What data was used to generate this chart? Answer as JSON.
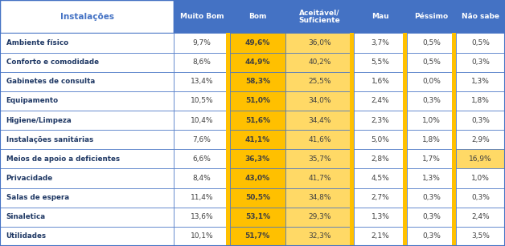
{
  "title": "Instalações",
  "columns": [
    "Muito Bom",
    "Bom",
    "Aceitável/\nSuficiente",
    "Mau",
    "Péssimo",
    "Não sabe"
  ],
  "rows": [
    "Ambiente físico",
    "Conforto e comodidade",
    "Gabinetes de consulta",
    "Equipamento",
    "Higiene/Limpeza",
    "Instalações sanitárias",
    "Meios de apoio a deficientes",
    "Privacidade",
    "Salas de espera",
    "Sinaletica",
    "Utilidades"
  ],
  "data": [
    [
      9.7,
      49.6,
      36.0,
      3.7,
      0.5,
      0.5
    ],
    [
      8.6,
      44.9,
      40.2,
      5.5,
      0.5,
      0.3
    ],
    [
      13.4,
      58.3,
      25.5,
      1.6,
      0.0,
      1.3
    ],
    [
      10.5,
      51.0,
      34.0,
      2.4,
      0.3,
      1.8
    ],
    [
      10.4,
      51.6,
      34.4,
      2.3,
      1.0,
      0.3
    ],
    [
      7.6,
      41.1,
      41.6,
      5.0,
      1.8,
      2.9
    ],
    [
      6.6,
      36.3,
      35.7,
      2.8,
      1.7,
      16.9
    ],
    [
      8.4,
      43.0,
      41.7,
      4.5,
      1.3,
      1.0
    ],
    [
      11.4,
      50.5,
      34.8,
      2.7,
      0.3,
      0.3
    ],
    [
      13.6,
      53.1,
      29.3,
      1.3,
      0.3,
      2.4
    ],
    [
      10.1,
      51.7,
      32.3,
      2.1,
      0.3,
      3.5
    ]
  ],
  "text_data": [
    [
      "9,7%",
      "49,6%",
      "36,0%",
      "3,7%",
      "0,5%",
      "0,5%"
    ],
    [
      "8,6%",
      "44,9%",
      "40,2%",
      "5,5%",
      "0,5%",
      "0,3%"
    ],
    [
      "13,4%",
      "58,3%",
      "25,5%",
      "1,6%",
      "0,0%",
      "1,3%"
    ],
    [
      "10,5%",
      "51,0%",
      "34,0%",
      "2,4%",
      "0,3%",
      "1,8%"
    ],
    [
      "10,4%",
      "51,6%",
      "34,4%",
      "2,3%",
      "1,0%",
      "0,3%"
    ],
    [
      "7,6%",
      "41,1%",
      "41,6%",
      "5,0%",
      "1,8%",
      "2,9%"
    ],
    [
      "6,6%",
      "36,3%",
      "35,7%",
      "2,8%",
      "1,7%",
      "16,9%"
    ],
    [
      "8,4%",
      "43,0%",
      "41,7%",
      "4,5%",
      "1,3%",
      "1,0%"
    ],
    [
      "11,4%",
      "50,5%",
      "34,8%",
      "2,7%",
      "0,3%",
      "0,3%"
    ],
    [
      "13,6%",
      "53,1%",
      "29,3%",
      "1,3%",
      "0,3%",
      "2,4%"
    ],
    [
      "10,1%",
      "51,7%",
      "32,3%",
      "2,1%",
      "0,3%",
      "3,5%"
    ]
  ],
  "col_bold_per_row": [
    [
      false,
      true,
      false,
      false,
      false,
      false
    ],
    [
      false,
      true,
      false,
      false,
      false,
      false
    ],
    [
      false,
      true,
      false,
      false,
      false,
      false
    ],
    [
      false,
      true,
      false,
      false,
      false,
      false
    ],
    [
      false,
      true,
      false,
      false,
      false,
      false
    ],
    [
      false,
      true,
      false,
      false,
      false,
      false
    ],
    [
      false,
      true,
      false,
      false,
      false,
      false
    ],
    [
      false,
      true,
      false,
      false,
      false,
      false
    ],
    [
      false,
      true,
      false,
      false,
      false,
      false
    ],
    [
      false,
      true,
      false,
      false,
      false,
      false
    ],
    [
      false,
      true,
      false,
      false,
      false,
      false
    ]
  ],
  "nao_sabe_highlighted": [
    false,
    false,
    false,
    false,
    false,
    false,
    true,
    false,
    false,
    false,
    false
  ],
  "header_bg": "#4472C4",
  "orange": "#FFC000",
  "light_yellow": "#FFD966",
  "white": "#FFFFFF",
  "title_color": "#4472C4",
  "text_color": "#404040",
  "border_color": "#4472C4",
  "strip_color": "#FFA500",
  "figsize": [
    6.28,
    3.07
  ],
  "dpi": 100
}
